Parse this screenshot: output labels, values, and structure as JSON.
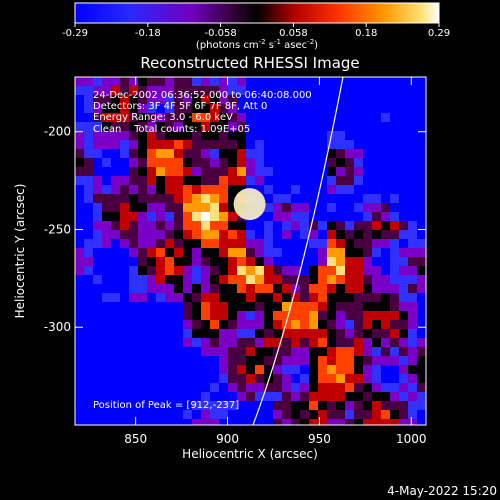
{
  "chart_data": {
    "type": "heatmap",
    "title": "Reconstructed RHESSI Image",
    "xlabel": "Heliocentric X (arcsec)",
    "ylabel": "Heliocentric Y (arcsec)",
    "xlim": [
      817,
      1008
    ],
    "ylim": [
      -350,
      -172
    ],
    "x_ticks": [
      850,
      900,
      950,
      1000
    ],
    "y_ticks": [
      -200,
      -250,
      -300
    ],
    "colorbar": {
      "min": -0.29,
      "max": 0.29,
      "ticks": [
        "-0.29",
        "-0.18",
        "-0.058",
        "0.058",
        "0.18",
        "0.29"
      ],
      "unit_prefix": "(photons cm",
      "unit_sup1": "-2",
      "unit_mid1": " s",
      "unit_sup2": "-1",
      "unit_mid2": " asec",
      "unit_sup3": "-2",
      "unit_suffix": ")",
      "colors": [
        "#0000ff",
        "#3030ff",
        "#7a00c8",
        "#4a0040",
        "#000000",
        "#c00000",
        "#ff4000",
        "#ff9a00",
        "#ffe07a",
        "#ffffff"
      ]
    },
    "annotations": [
      "24-Dec-2002 06:36:52.000 to 06:40:08.000",
      "Detectors: 3F 4F 5F 6F 7F 8F, Att 0",
      "Energy Range: 3.0 - 6.0 keV",
      "Clean    Total counts: 1.09E+05"
    ],
    "peak_label": "Position of Peak = [912,-237]",
    "peak": [
      912,
      -237
    ],
    "limb": "solar limb arc"
  },
  "footer_date": "4-May-2022 15:20"
}
